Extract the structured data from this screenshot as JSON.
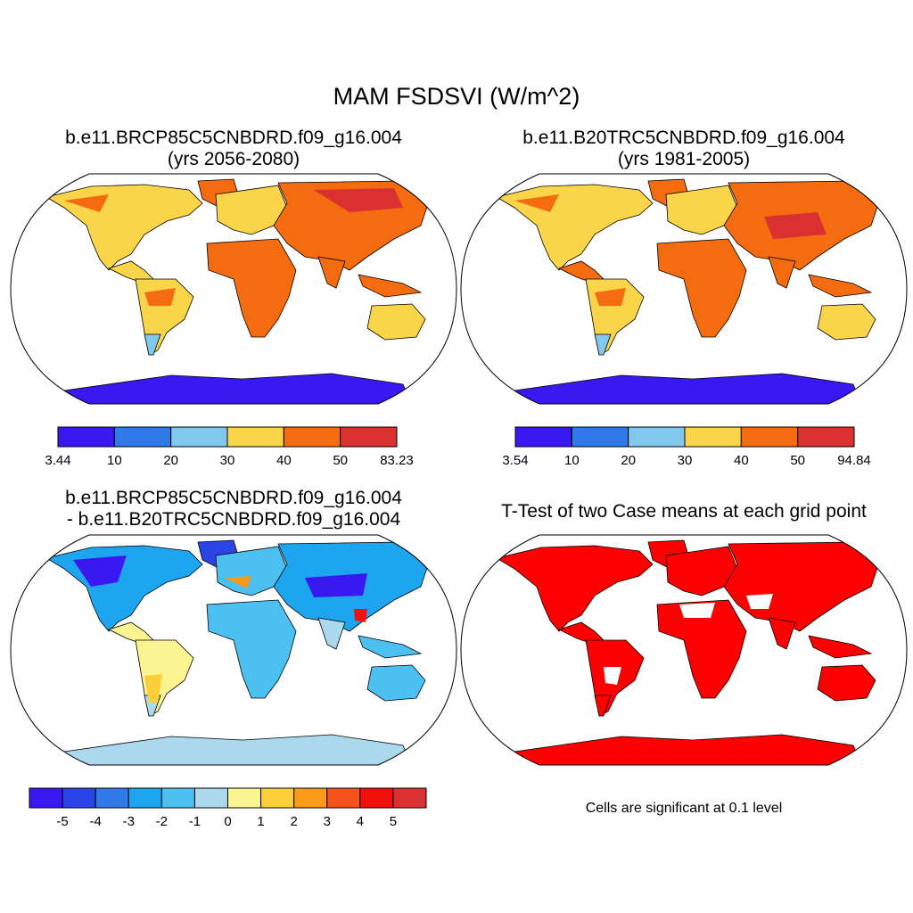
{
  "title": "MAM FSDSVI (W/m^2)",
  "panels": [
    {
      "title_line1": "b.e11.BRCP85C5CNBDRD.f09_g16.004",
      "title_line2": "(yrs 2056-2080)",
      "colorbar_labels": [
        "3.44",
        "10",
        "20",
        "30",
        "40",
        "50",
        "83.23"
      ]
    },
    {
      "title_line1": "b.e11.B20TRC5CNBDRD.f09_g16.004",
      "title_line2": "(yrs 1981-2005)",
      "colorbar_labels": [
        "3.54",
        "10",
        "20",
        "30",
        "40",
        "50",
        "94.84"
      ]
    },
    {
      "title_line1": "b.e11.BRCP85C5CNBDRD.f09_g16.004",
      "title_line2": "- b.e11.B20TRC5CNBDRD.f09_g16.004",
      "colorbar_labels": [
        "-5",
        "-4",
        "-3",
        "-2",
        "-1",
        "0",
        "1",
        "2",
        "3",
        "4",
        "5"
      ]
    },
    {
      "title_line1": "T-Test of two Case means at each grid point",
      "note": "Cells are significant at 0.1 level"
    }
  ],
  "colors": {
    "abs_scale": [
      "#3a18f2",
      "#2f7ae8",
      "#80c8ee",
      "#fad54a",
      "#f46b10",
      "#d93030"
    ],
    "diff_scale": [
      "#3a18f2",
      "#2a44e6",
      "#2f7ae8",
      "#1ea5f0",
      "#4dc0f2",
      "#aad9ee",
      "#fbf490",
      "#fbcf3a",
      "#f99a1a",
      "#f5531a",
      "#f0100c",
      "#d93030"
    ],
    "significant": "#ff0000"
  }
}
